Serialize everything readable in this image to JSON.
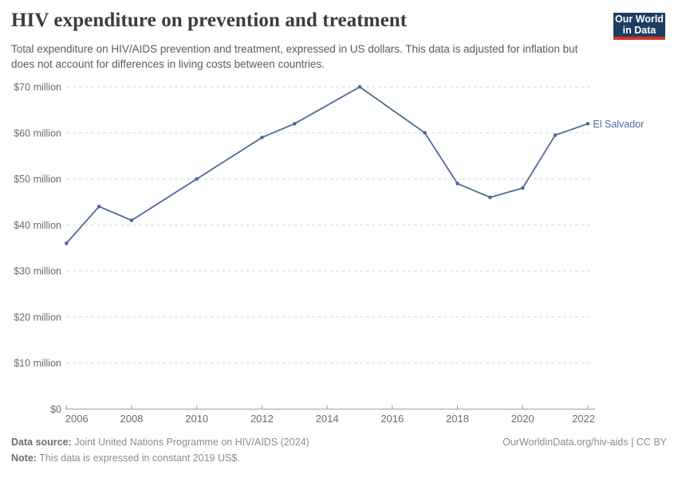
{
  "header": {
    "title": "HIV expenditure on prevention and treatment",
    "subtitle": "Total expenditure on HIV/AIDS prevention and treatment, expressed in US dollars. This data is adjusted for inflation but does not account for differences in living costs between countries.",
    "logo": {
      "line1": "Our World",
      "line2": "in Data",
      "bg_color": "#1d3d63",
      "accent_color": "#d0342c"
    }
  },
  "chart_data": {
    "type": "line",
    "title": "HIV expenditure on prevention and treatment",
    "xlabel": "",
    "ylabel": "",
    "xlim": [
      2006,
      2022
    ],
    "ylim": [
      0,
      70
    ],
    "grid": "dashed horizontal gridlines",
    "legend_position": "end-of-line label",
    "line_color": "#4C6A9C",
    "end_label": "El Salvador",
    "series": [
      {
        "name": "El Salvador",
        "points": [
          [
            2006,
            36
          ],
          [
            2007,
            44
          ],
          [
            2008,
            41
          ],
          [
            2010,
            50
          ],
          [
            2012,
            59
          ],
          [
            2013,
            62
          ],
          [
            2015,
            70
          ],
          [
            2017,
            60
          ],
          [
            2018,
            49
          ],
          [
            2019,
            46
          ],
          [
            2020,
            48
          ],
          [
            2021,
            59.5
          ],
          [
            2022,
            62
          ]
        ]
      }
    ],
    "yticks": [
      {
        "value": 0,
        "label": "$0"
      },
      {
        "value": 10,
        "label": "$10 million"
      },
      {
        "value": 20,
        "label": "$20 million"
      },
      {
        "value": 30,
        "label": "$30 million"
      },
      {
        "value": 40,
        "label": "$40 million"
      },
      {
        "value": 50,
        "label": "$50 million"
      },
      {
        "value": 60,
        "label": "$60 million"
      },
      {
        "value": 70,
        "label": "$70 million"
      }
    ],
    "xticks": [
      2006,
      2008,
      2010,
      2012,
      2014,
      2016,
      2018,
      2020,
      2022
    ],
    "colors": {
      "gridline": "#d8d8d8",
      "axis": "#a0a0a0",
      "tick_label": "#6b6b6b"
    }
  },
  "footer": {
    "source_label": "Data source:",
    "source_text": " Joint United Nations Programme on HIV/AIDS (2024)",
    "note_label": "Note:",
    "note_text": " This data is expressed in constant 2019 US$.",
    "right_text": "OurWorldinData.org/hiv-aids | CC BY"
  }
}
